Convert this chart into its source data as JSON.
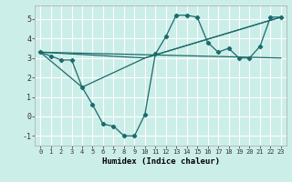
{
  "xlabel": "Humidex (Indice chaleur)",
  "bg_color": "#cceee8",
  "line_color": "#1a6b6b",
  "grid_color": "#ffffff",
  "xlim": [
    -0.5,
    23.5
  ],
  "ylim": [
    -1.5,
    5.7
  ],
  "yticks": [
    -1,
    0,
    1,
    2,
    3,
    4,
    5
  ],
  "xticks": [
    0,
    1,
    2,
    3,
    4,
    5,
    6,
    7,
    8,
    9,
    10,
    11,
    12,
    13,
    14,
    15,
    16,
    17,
    18,
    19,
    20,
    21,
    22,
    23
  ],
  "series_main": {
    "x": [
      0,
      1,
      2,
      3,
      4,
      5,
      6,
      7,
      8,
      9,
      10,
      11,
      12,
      13,
      14,
      15,
      16,
      17,
      18,
      19,
      20,
      21,
      22,
      23
    ],
    "y": [
      3.3,
      3.1,
      2.9,
      2.9,
      1.5,
      0.6,
      -0.4,
      -0.5,
      -1.0,
      -1.0,
      0.1,
      3.2,
      4.1,
      5.2,
      5.2,
      5.1,
      3.8,
      3.3,
      3.5,
      3.0,
      3.0,
      3.6,
      5.1,
      5.1
    ]
  },
  "line1": {
    "x": [
      0,
      23
    ],
    "y": [
      3.3,
      3.0
    ]
  },
  "line2": {
    "x": [
      0,
      10,
      23
    ],
    "y": [
      3.3,
      3.0,
      5.1
    ]
  },
  "line3": {
    "x": [
      0,
      4,
      10,
      23
    ],
    "y": [
      3.3,
      1.5,
      3.0,
      5.1
    ]
  }
}
